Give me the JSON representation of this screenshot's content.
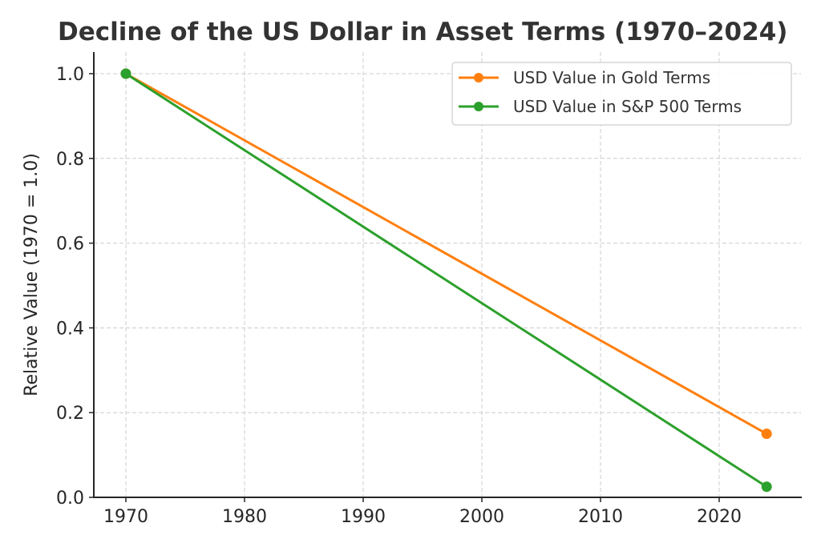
{
  "chart_data": {
    "type": "line",
    "title": "Decline of the US Dollar in Asset Terms (1970–2024)",
    "xlabel": "",
    "ylabel": "Relative Value (1970 = 1.0)",
    "x": [
      1970,
      2024
    ],
    "xlim": [
      1967,
      2027
    ],
    "ylim": [
      0.0,
      1.05
    ],
    "xticks": [
      1970,
      1980,
      1990,
      2000,
      2010,
      2020
    ],
    "xtick_labels": [
      "1970",
      "1980",
      "1990",
      "2000",
      "2010",
      "2020"
    ],
    "yticks": [
      0.0,
      0.2,
      0.4,
      0.6,
      0.8,
      1.0
    ],
    "ytick_labels": [
      "0.0",
      "0.2",
      "0.4",
      "0.6",
      "0.8",
      "1.0"
    ],
    "grid": true,
    "legend_position": "top-right",
    "series": [
      {
        "name": "USD Value in Gold Terms",
        "color": "#ff7f0e",
        "marker": "circle",
        "values": [
          1.0,
          0.15
        ]
      },
      {
        "name": "USD Value in S&P 500 Terms",
        "color": "#2ca02c",
        "marker": "circle",
        "values": [
          1.0,
          0.025
        ]
      }
    ]
  }
}
